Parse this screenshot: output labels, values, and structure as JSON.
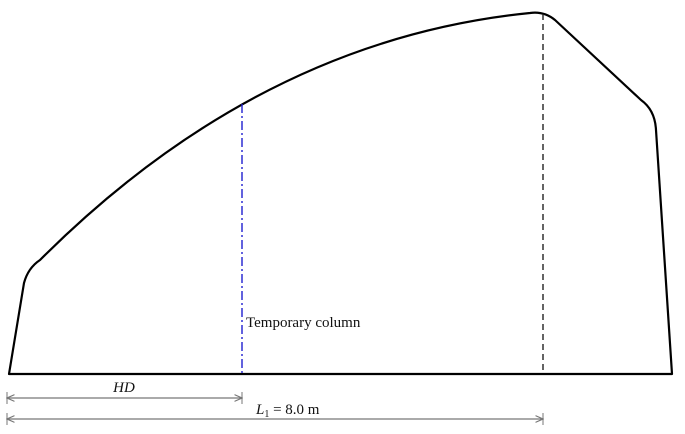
{
  "diagram": {
    "column_label": "Temporary column",
    "hd_label": "HD",
    "span_label": {
      "symbol": "L",
      "subscript": "1",
      "value": " = 8.0 m"
    },
    "colors": {
      "outline": "#000000",
      "column": "#1f1fd0",
      "dimension": "#777777",
      "dashed_line": "#222222"
    }
  }
}
